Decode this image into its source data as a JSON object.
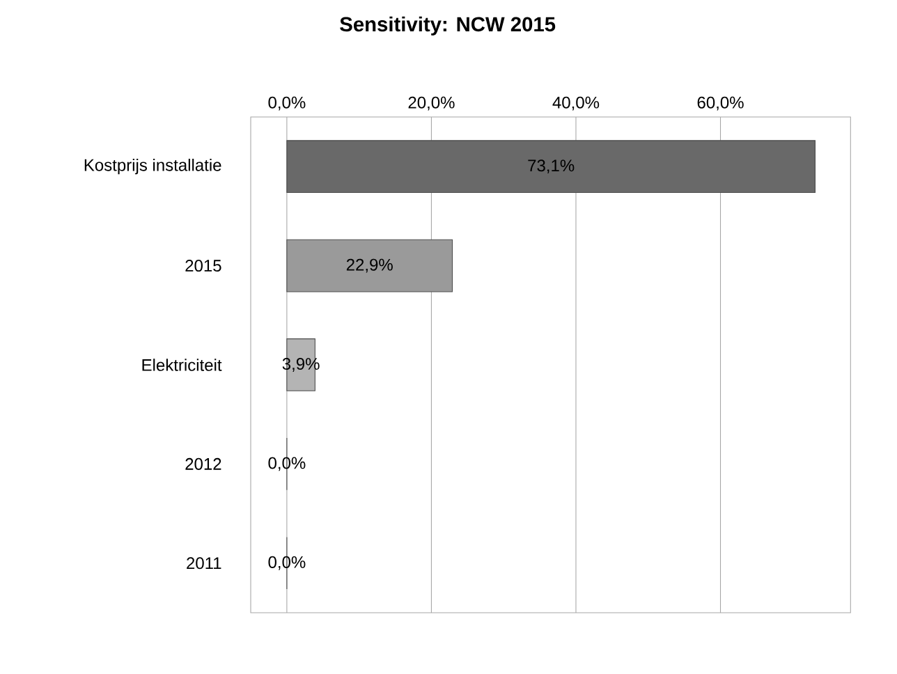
{
  "chart_data": {
    "type": "bar",
    "orientation": "horizontal",
    "title": "Sensitivity: NCW 2015",
    "categories": [
      "Kostprijs installatie",
      "2015",
      "Elektriciteit",
      "2012",
      "2011"
    ],
    "values": [
      73.1,
      22.9,
      3.9,
      0,
      0
    ],
    "value_labels": [
      "73,1%",
      "22,9%",
      "3,9%",
      "0,0%",
      "0,0%"
    ],
    "colors": [
      "#696969",
      "#9a9a9a",
      "#b4b4b4",
      "#b4b4b4",
      "#b4b4b4"
    ],
    "xlim": [
      -5,
      78
    ],
    "xticks": [
      {
        "value": 0,
        "label": "0,0%"
      },
      {
        "value": 20,
        "label": "20,0%"
      },
      {
        "value": 40,
        "label": "40,0%"
      },
      {
        "value": 60,
        "label": "60,0%"
      }
    ],
    "grid": "x"
  }
}
